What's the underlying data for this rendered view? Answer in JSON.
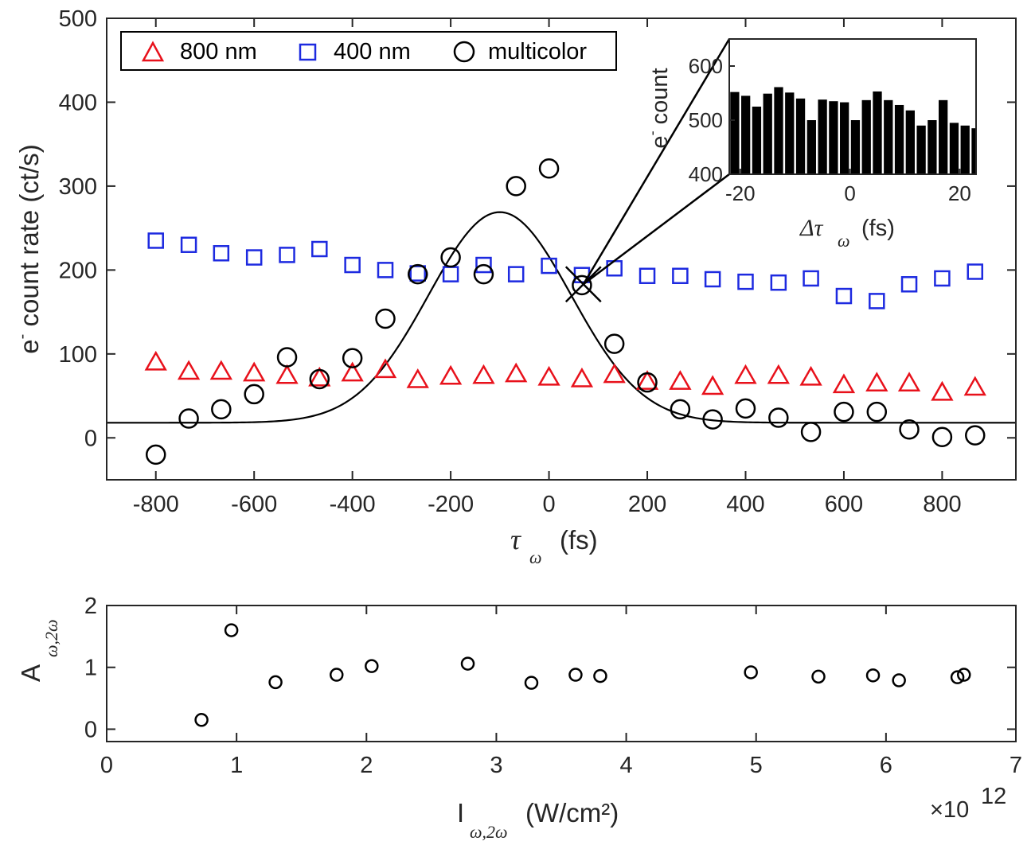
{
  "chart_data": [
    {
      "type": "scatter",
      "title": "",
      "xlabel": "τ",
      "xlabel_sub": "ω",
      "xlabel_unit": "(fs)",
      "ylabel": "e",
      "ylabel_sup": "-",
      "ylabel_rest": " count rate (ct/s)",
      "xlim": [
        -900,
        950
      ],
      "ylim": [
        -50,
        500
      ],
      "xticks": [
        -800,
        -600,
        -400,
        -200,
        0,
        200,
        400,
        600,
        800
      ],
      "xtick_labels": [
        "-800",
        "-600",
        "-400",
        "-200",
        "0",
        "200",
        "400",
        "600",
        "800"
      ],
      "yticks": [
        0,
        100,
        200,
        300,
        400,
        500
      ],
      "ytick_labels": [
        "0",
        "100",
        "200",
        "300",
        "400",
        "500"
      ],
      "legend_position": "top-left",
      "series": [
        {
          "name": "800 nm",
          "marker": "triangle",
          "color": "#e8111b",
          "x": [
            -800,
            -733,
            -667,
            -600,
            -533,
            -467,
            -400,
            -333,
            -267,
            -200,
            -133,
            -67,
            0,
            67,
            133,
            200,
            267,
            333,
            400,
            467,
            533,
            600,
            667,
            733,
            800,
            867
          ],
          "y": [
            90,
            79,
            79,
            77,
            74,
            71,
            77,
            81,
            69,
            73,
            74,
            76,
            72,
            70,
            75,
            67,
            67,
            61,
            74,
            74,
            72,
            63,
            65,
            65,
            54,
            60
          ]
        },
        {
          "name": "400 nm",
          "marker": "square",
          "color": "#1d2ae0",
          "x": [
            -800,
            -733,
            -667,
            -600,
            -533,
            -467,
            -400,
            -333,
            -267,
            -200,
            -133,
            -67,
            0,
            67,
            133,
            200,
            267,
            333,
            400,
            467,
            533,
            600,
            667,
            733,
            800,
            867
          ],
          "y": [
            235,
            230,
            220,
            215,
            218,
            225,
            206,
            200,
            196,
            195,
            206,
            195,
            205,
            194,
            202,
            193,
            193,
            189,
            186,
            185,
            190,
            169,
            163,
            183,
            190,
            198
          ]
        },
        {
          "name": "multicolor",
          "marker": "circle",
          "color": "#000000",
          "x": [
            -800,
            -733,
            -667,
            -600,
            -533,
            -467,
            -400,
            -333,
            -267,
            -200,
            -133,
            -67,
            0,
            67,
            133,
            200,
            267,
            333,
            400,
            467,
            533,
            600,
            667,
            733,
            800,
            867
          ],
          "y": [
            -20,
            23,
            34,
            52,
            96,
            70,
            95,
            142,
            195,
            215,
            195,
            300,
            321,
            182,
            112,
            66,
            34,
            22,
            35,
            24,
            7,
            31,
            31,
            10,
            1,
            3
          ]
        }
      ],
      "fit": {
        "name": "gaussian fit",
        "baseline": 18,
        "amplitude": 251,
        "center": -100,
        "sigma": 145,
        "color": "#000000"
      },
      "marker_point": {
        "x": 70,
        "y": 183,
        "symbol": "×"
      }
    },
    {
      "type": "bar",
      "title": "inset",
      "xlabel": "Δτ",
      "xlabel_sub": "ω",
      "xlabel_unit": "(fs)",
      "ylabel": "e",
      "ylabel_sup": "-",
      "ylabel_rest": " count",
      "xlim": [
        -22,
        23
      ],
      "ylim": [
        400,
        650
      ],
      "xticks": [
        -20,
        0,
        20
      ],
      "xtick_labels": [
        "-20",
        "0",
        "20"
      ],
      "yticks": [
        400,
        500,
        600
      ],
      "ytick_labels": [
        "400",
        "500",
        "600"
      ],
      "x": [
        -21,
        -19,
        -17,
        -15,
        -13,
        -11,
        -9,
        -7,
        -5,
        -3,
        -1,
        1,
        3,
        5,
        7,
        9,
        11,
        13,
        15,
        17,
        19,
        21,
        23
      ],
      "values": [
        552,
        545,
        525,
        549,
        561,
        551,
        540,
        500,
        538,
        535,
        533,
        500,
        537,
        553,
        537,
        528,
        518,
        490,
        500,
        537,
        495,
        490,
        485
      ],
      "color": "#000000"
    },
    {
      "type": "scatter",
      "title": "",
      "xlabel": "I",
      "xlabel_sub": "ω,2ω",
      "xlabel_unit": " (W/cm²)",
      "ylabel": "A",
      "ylabel_sub": "ω,2ω",
      "xlim": [
        0,
        7
      ],
      "ylim": [
        -0.2,
        2
      ],
      "xticks": [
        0,
        1,
        2,
        3,
        4,
        5,
        6,
        7
      ],
      "xtick_labels": [
        "0",
        "1",
        "2",
        "3",
        "4",
        "5",
        "6",
        "7"
      ],
      "yticks": [
        0,
        1,
        2
      ],
      "ytick_labels": [
        "0",
        "1",
        "2"
      ],
      "exponent_label": "×10",
      "exponent_power": "12",
      "series": [
        {
          "name": "A",
          "marker": "circle",
          "color": "#000000",
          "x": [
            0.73,
            0.96,
            1.3,
            1.77,
            2.04,
            2.78,
            3.27,
            3.61,
            3.8,
            4.96,
            5.48,
            5.9,
            6.1,
            6.55,
            6.6
          ],
          "y": [
            0.15,
            1.6,
            0.76,
            0.88,
            1.02,
            1.06,
            0.75,
            0.88,
            0.86,
            0.92,
            0.85,
            0.87,
            0.79,
            0.84,
            0.88
          ]
        }
      ]
    }
  ]
}
